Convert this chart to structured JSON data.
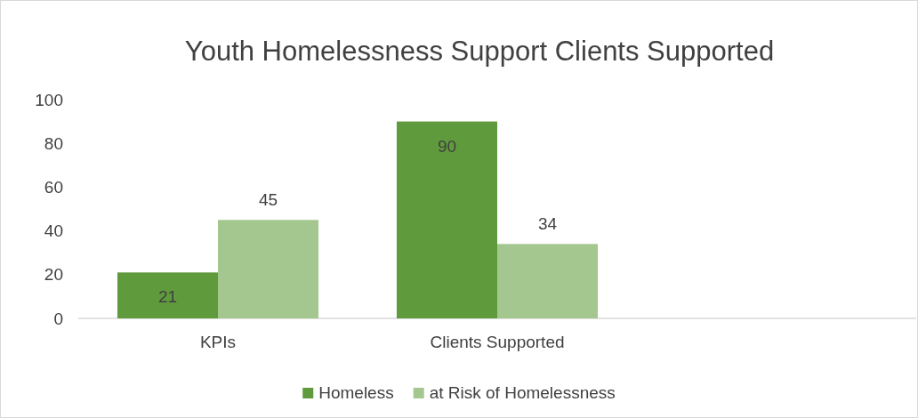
{
  "chart_data": {
    "type": "bar",
    "title": "Youth Homelessness Support Clients Supported",
    "categories": [
      "KPIs",
      "Clients Supported",
      null
    ],
    "series": [
      {
        "name": "Homeless",
        "color": "#5f9b3d",
        "values": [
          21,
          90,
          null
        ]
      },
      {
        "name": "at Risk of Homelessness",
        "color": "#a4c68f",
        "values": [
          45,
          34,
          null
        ]
      }
    ],
    "ylim": [
      0,
      100
    ],
    "yticks": [
      0,
      20,
      40,
      60,
      80,
      100
    ],
    "data_labels": true,
    "legend": "bottom",
    "grid": false
  }
}
